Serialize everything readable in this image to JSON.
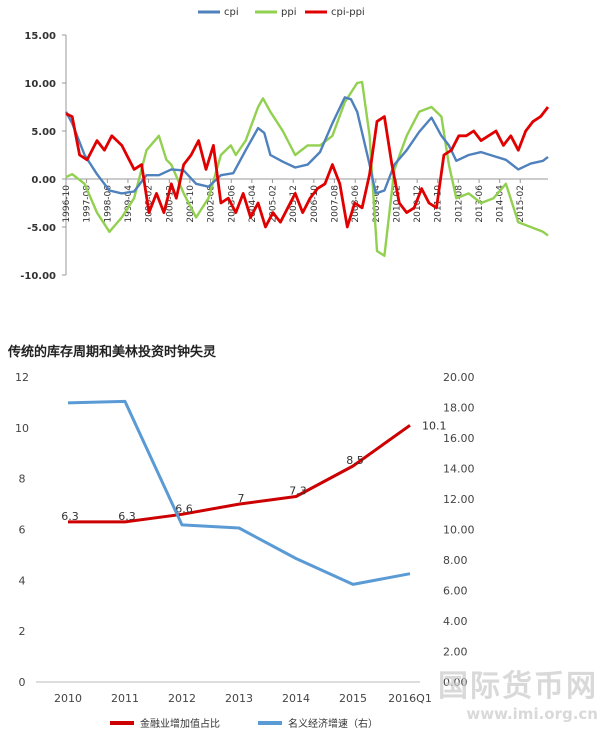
{
  "chart_data": [
    {
      "type": "line",
      "legend": {
        "position": "top",
        "entries": [
          "cpi",
          "ppi",
          "cpi-ppi"
        ]
      },
      "colors": {
        "cpi": "#4f81bd",
        "ppi": "#92d050",
        "cpi-ppi": "#e00000"
      },
      "ylim": [
        -10,
        15
      ],
      "yticks": [
        "15.00",
        "10.00",
        "5.00",
        "0.00",
        "-5.00",
        "-10.00"
      ],
      "ytick_values": [
        15,
        10,
        5,
        0,
        -5,
        -10
      ],
      "xlim": [
        1996.75,
        2016.2
      ],
      "xticks": [
        "1996-10",
        "1997-08",
        "1998-06",
        "1999-04",
        "2000-02",
        "2000-12",
        "2001-10",
        "2002-08",
        "2003-06",
        "2004-04",
        "2005-02",
        "2005-12",
        "2006-10",
        "2007-08",
        "2008-06",
        "2009-04",
        "2010-02",
        "2010-12",
        "2011-10",
        "2012-08",
        "2013-06",
        "2014-04",
        "2015-02"
      ],
      "xtick_values": [
        1996.75,
        1997.58,
        1998.42,
        1999.25,
        2000.08,
        2000.92,
        2001.75,
        2002.58,
        2003.42,
        2004.25,
        2005.08,
        2005.92,
        2006.75,
        2007.58,
        2008.42,
        2009.25,
        2010.08,
        2010.92,
        2011.75,
        2012.58,
        2013.42,
        2014.25,
        2015.08
      ],
      "grid": false,
      "series": [
        {
          "name": "cpi",
          "x": [
            1996.75,
            1997.0,
            1997.5,
            1998.0,
            1998.5,
            1999.0,
            1999.5,
            2000.0,
            2000.5,
            2001.0,
            2001.5,
            2002.0,
            2002.5,
            2003.0,
            2003.5,
            2004.0,
            2004.5,
            2004.75,
            2005.0,
            2005.5,
            2006.0,
            2006.5,
            2007.0,
            2007.5,
            2008.0,
            2008.25,
            2008.5,
            2009.0,
            2009.25,
            2009.6,
            2010.0,
            2010.5,
            2011.0,
            2011.5,
            2011.9,
            2012.2,
            2012.5,
            2013.0,
            2013.5,
            2014.0,
            2014.5,
            2015.0,
            2015.5,
            2016.0,
            2016.2
          ],
          "values": [
            7.0,
            5.8,
            2.5,
            0.5,
            -1.2,
            -1.5,
            -1.3,
            0.4,
            0.4,
            1.0,
            0.9,
            -0.5,
            -0.8,
            0.4,
            0.6,
            3.0,
            5.3,
            4.8,
            2.5,
            1.8,
            1.2,
            1.5,
            2.8,
            5.8,
            8.5,
            8.3,
            7.0,
            1.5,
            -1.5,
            -1.2,
            1.5,
            3.0,
            4.9,
            6.4,
            4.5,
            3.5,
            1.9,
            2.5,
            2.8,
            2.4,
            2.0,
            1.0,
            1.6,
            1.9,
            2.3
          ]
        },
        {
          "name": "ppi",
          "x": [
            1996.75,
            1997.0,
            1997.5,
            1998.0,
            1998.5,
            1999.0,
            1999.5,
            2000.0,
            2000.5,
            2000.8,
            2001.0,
            2001.5,
            2002.0,
            2002.5,
            2003.0,
            2003.4,
            2003.6,
            2004.0,
            2004.5,
            2004.7,
            2005.0,
            2005.5,
            2006.0,
            2006.5,
            2007.0,
            2007.5,
            2008.0,
            2008.5,
            2008.7,
            2009.0,
            2009.3,
            2009.6,
            2010.0,
            2010.5,
            2011.0,
            2011.5,
            2011.9,
            2012.2,
            2012.5,
            2013.0,
            2013.5,
            2014.0,
            2014.5,
            2015.0,
            2015.5,
            2016.0,
            2016.2
          ],
          "values": [
            0.2,
            0.5,
            -0.5,
            -3.5,
            -5.5,
            -4.0,
            -2.0,
            3.0,
            4.5,
            2.0,
            1.5,
            -1.5,
            -4.0,
            -2.0,
            2.5,
            3.5,
            2.5,
            4.0,
            7.5,
            8.4,
            7.0,
            5.0,
            2.5,
            3.5,
            3.5,
            4.5,
            8.0,
            10.0,
            10.1,
            4.5,
            -7.5,
            -8.0,
            1.0,
            4.5,
            7.0,
            7.5,
            6.5,
            1.5,
            -2.0,
            -1.5,
            -2.5,
            -2.0,
            -0.5,
            -4.5,
            -5.0,
            -5.5,
            -5.9
          ]
        },
        {
          "name": "cpi-ppi",
          "x": [
            1996.75,
            1997.0,
            1997.3,
            1997.6,
            1998.0,
            1998.3,
            1998.6,
            1999.0,
            1999.5,
            1999.8,
            2000.1,
            2000.4,
            2000.7,
            2001.0,
            2001.2,
            2001.5,
            2001.8,
            2002.1,
            2002.4,
            2002.7,
            2003.0,
            2003.3,
            2003.6,
            2003.9,
            2004.2,
            2004.5,
            2004.8,
            2005.1,
            2005.4,
            2005.7,
            2006.0,
            2006.3,
            2006.6,
            2006.9,
            2007.2,
            2007.5,
            2007.8,
            2008.1,
            2008.4,
            2008.7,
            2009.0,
            2009.3,
            2009.6,
            2009.9,
            2010.2,
            2010.5,
            2010.8,
            2011.1,
            2011.4,
            2011.7,
            2012.0,
            2012.3,
            2012.6,
            2012.9,
            2013.2,
            2013.5,
            2013.8,
            2014.1,
            2014.4,
            2014.7,
            2015.0,
            2015.3,
            2015.6,
            2015.9,
            2016.2
          ],
          "values": [
            6.8,
            6.5,
            2.5,
            2.0,
            4.0,
            3.0,
            4.5,
            3.5,
            1.0,
            1.5,
            -3.5,
            -1.5,
            -3.5,
            -0.5,
            -2.0,
            1.5,
            2.5,
            4.0,
            1.0,
            3.5,
            -2.5,
            -2.0,
            -3.5,
            -1.5,
            -4.0,
            -2.5,
            -5.0,
            -3.5,
            -4.5,
            -3.0,
            -1.5,
            -3.5,
            -2.0,
            -1.0,
            -0.5,
            1.5,
            -0.5,
            -5.0,
            -2.5,
            -3.0,
            0.5,
            6.0,
            6.5,
            1.5,
            -2.5,
            -3.5,
            -3.0,
            -1.0,
            -2.5,
            -3.0,
            2.5,
            3.0,
            4.5,
            4.5,
            5.0,
            4.0,
            4.5,
            5.0,
            3.5,
            4.5,
            3.0,
            5.0,
            6.0,
            6.5,
            7.5
          ]
        }
      ]
    },
    {
      "type": "line",
      "title": "传统的库存周期和美林投资时钟失灵",
      "categories": [
        "2010",
        "2011",
        "2012",
        "2013",
        "2014",
        "2015",
        "2016Q1"
      ],
      "legend": {
        "position": "bottom",
        "entries": [
          "金融业增加值占比",
          "名义经济增速（右）"
        ]
      },
      "y_left": {
        "ylim": [
          0,
          12
        ],
        "ticks": [
          "0",
          "2",
          "4",
          "6",
          "8",
          "10",
          "12"
        ],
        "tick_values": [
          0,
          2,
          4,
          6,
          8,
          10,
          12
        ]
      },
      "y_right": {
        "ylim": [
          0,
          20
        ],
        "ticks": [
          "0.00",
          "2.00",
          "4.00",
          "6.00",
          "8.00",
          "10.00",
          "12.00",
          "14.00",
          "16.00",
          "18.00",
          "20.00"
        ],
        "tick_values": [
          0,
          2,
          4,
          6,
          8,
          10,
          12,
          14,
          16,
          18,
          20
        ]
      },
      "grid": false,
      "series": [
        {
          "name": "金融业增加值占比",
          "axis": "left",
          "color": "#cc0000",
          "values": [
            6.3,
            6.3,
            6.6,
            7.0,
            7.3,
            8.5,
            10.1
          ],
          "labels": [
            "6.3",
            "6.3",
            "6.6",
            "7",
            "7.3",
            "8.5",
            "10.1"
          ]
        },
        {
          "name": "名义经济增速（右）",
          "axis": "right",
          "color": "#5b9bd5",
          "values": [
            18.3,
            18.4,
            10.3,
            10.1,
            8.1,
            6.4,
            7.1
          ]
        }
      ]
    }
  ],
  "watermark": {
    "name": "国际货币网",
    "url": "www.imi.org.cn"
  }
}
